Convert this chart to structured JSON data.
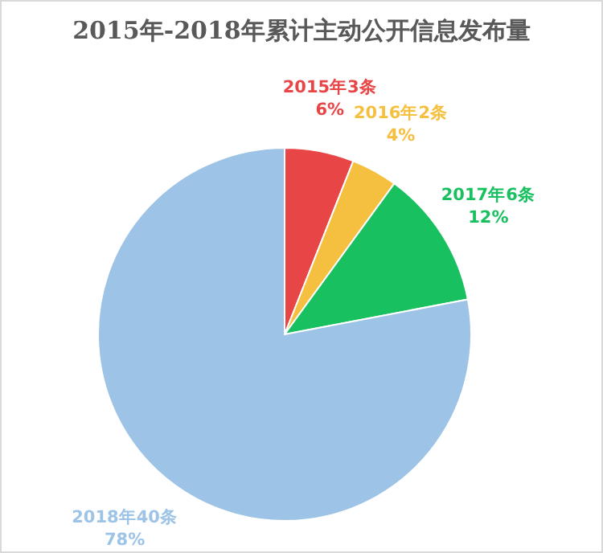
{
  "chart_data": {
    "type": "pie",
    "title": "2015年-2018年累计主动公开信息发布量",
    "categories": [
      "2015年3条",
      "2016年2条",
      "2017年6条",
      "2018年40条"
    ],
    "values": [
      6,
      4,
      12,
      78
    ],
    "colors": [
      "#e84646",
      "#f5c040",
      "#19c060",
      "#9dc3e6"
    ],
    "value_labels": [
      "6%",
      "4%",
      "12%",
      "78%"
    ]
  }
}
